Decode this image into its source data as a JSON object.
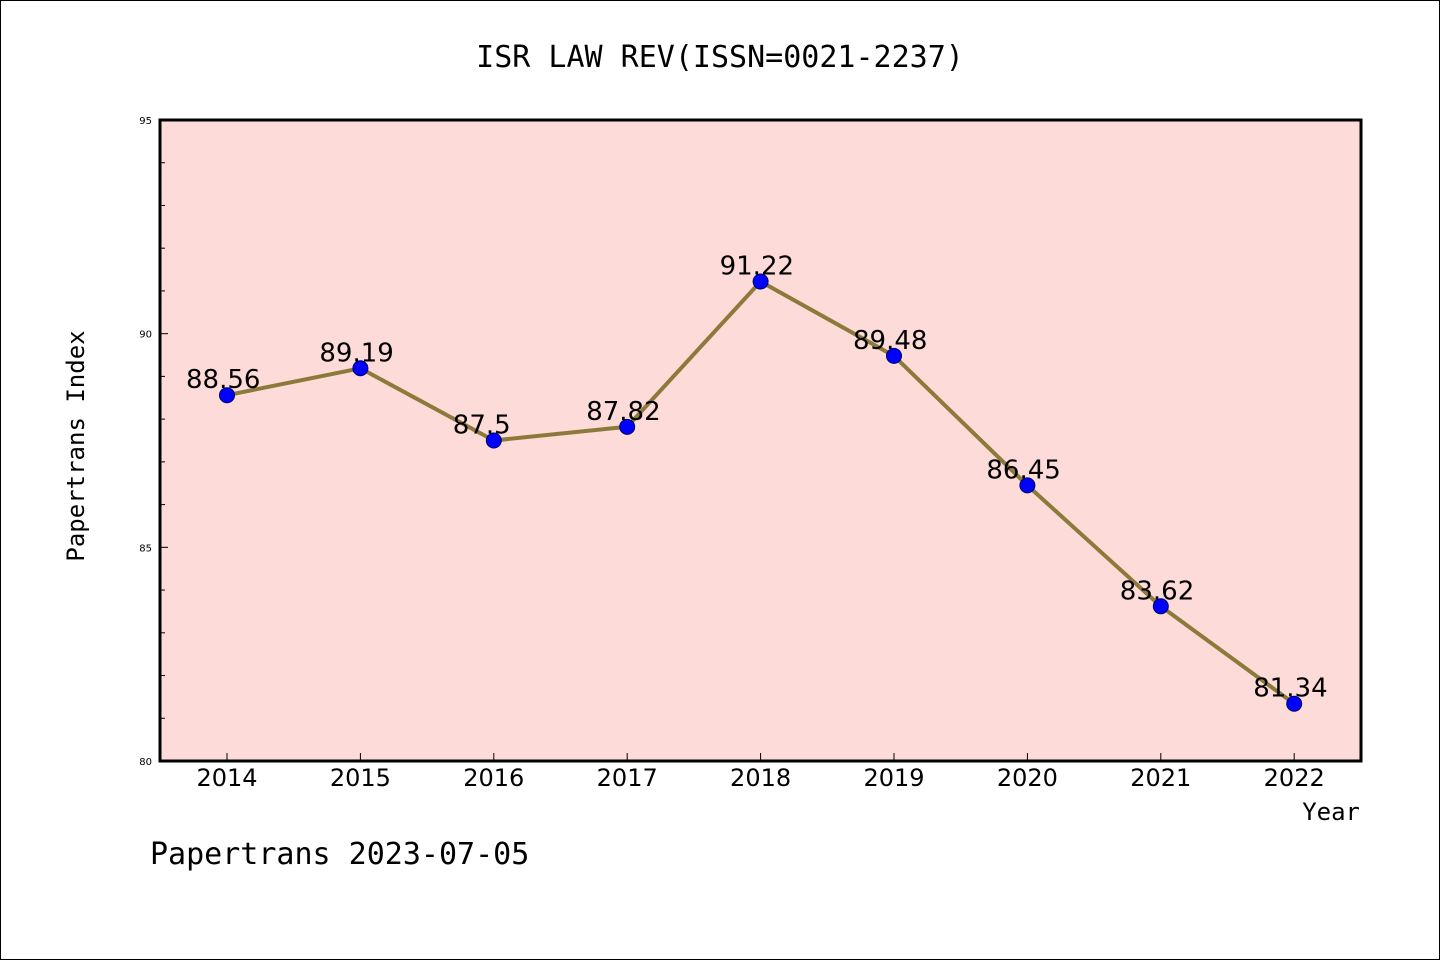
{
  "chart_data": {
    "type": "line",
    "title": "ISR LAW REV(ISSN=0021-2237)",
    "xlabel": "Year",
    "ylabel": "Papertrans Index",
    "categories": [
      "2014",
      "2015",
      "2016",
      "2017",
      "2018",
      "2019",
      "2020",
      "2021",
      "2022"
    ],
    "values": [
      88.56,
      89.19,
      87.5,
      87.82,
      91.22,
      89.48,
      86.45,
      83.62,
      81.34
    ],
    "data_labels": [
      "88.56",
      "89.19",
      "87.5",
      "87.82",
      "91.22",
      "89.48",
      "86.45",
      "83.62",
      "81.34"
    ],
    "ylim": [
      80,
      95
    ],
    "yticks": [
      80,
      85,
      90,
      95
    ],
    "grid": false,
    "plot_background": "#fddbd8",
    "line_color": "#8c7a3a",
    "marker_color": "#0000ff"
  },
  "footer": "Papertrans 2023-07-05"
}
